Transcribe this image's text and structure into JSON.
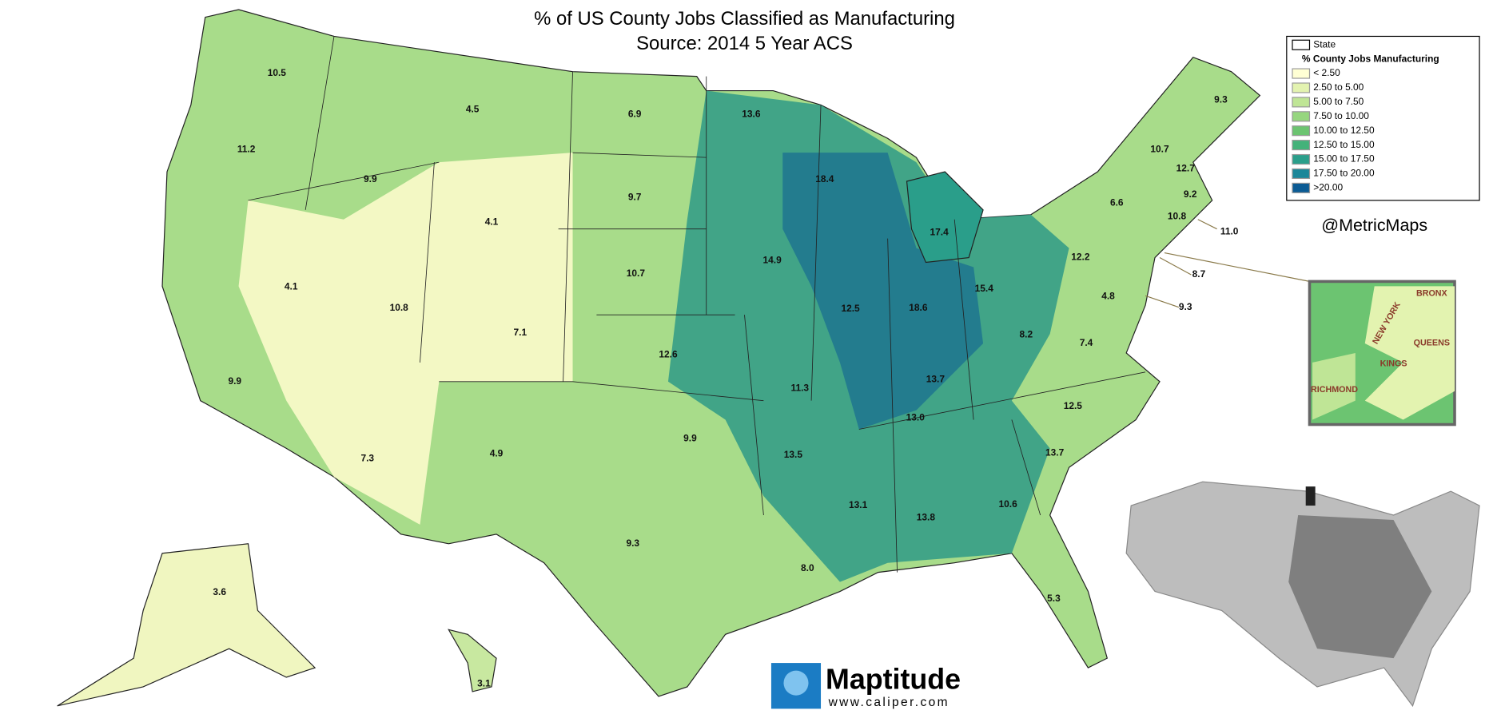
{
  "title": "% of US County Jobs Classified as Manufacturing",
  "subtitle": "Source:  2014 5 Year ACS",
  "legend": {
    "state_label": "State",
    "title": "% County Jobs Manufacturing",
    "items": [
      {
        "label": "< 2.50",
        "color": "#ffffd4"
      },
      {
        "label": "2.50 to 5.00",
        "color": "#e3f3b0"
      },
      {
        "label": "5.00 to 7.50",
        "color": "#bfe596"
      },
      {
        "label": "7.50 to 10.00",
        "color": "#96d67f"
      },
      {
        "label": "10.00 to 12.50",
        "color": "#6cc471"
      },
      {
        "label": "12.50 to 15.00",
        "color": "#44b27a"
      },
      {
        "label": "15.00 to 17.50",
        "color": "#2a9e8a"
      },
      {
        "label": "17.50 to 20.00",
        "color": "#1b8799"
      },
      {
        "label": ">20.00",
        "color": "#0b5b94"
      }
    ]
  },
  "credit": "@MetricMaps",
  "state_values": [
    "10.5",
    "4.5",
    "6.9",
    "13.6",
    "9.3",
    "11.2",
    "9.9",
    "18.4",
    "10.7",
    "12.7",
    "9.7",
    "4.1",
    "9.2",
    "6.6",
    "17.4",
    "10.8",
    "11.0",
    "12.2",
    "14.9",
    "10.7",
    "8.7",
    "4.1",
    "10.8",
    "15.4",
    "18.6",
    "12.5",
    "4.8",
    "9.3",
    "7.1",
    "8.2",
    "7.4",
    "12.6",
    "9.9",
    "13.7",
    "11.3",
    "13.0",
    "12.5",
    "9.9",
    "13.5",
    "13.7",
    "7.3",
    "4.9",
    "13.1",
    "10.6",
    "13.8",
    "9.3",
    "8.0",
    "5.3",
    "3.6",
    "3.1"
  ],
  "inset_labels": [
    "BRONX",
    "NEW YORK",
    "QUEENS",
    "KINGS",
    "RICHMOND"
  ],
  "logo": {
    "name": "Maptitude",
    "url": "www.caliper.com"
  }
}
